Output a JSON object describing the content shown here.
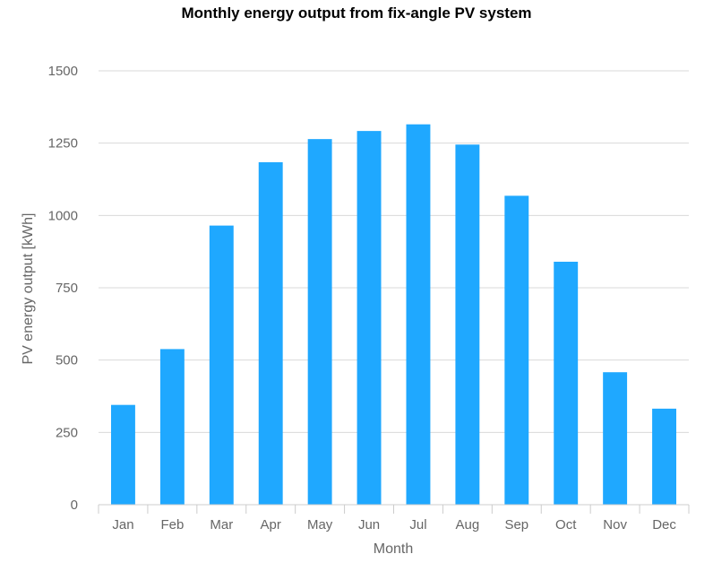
{
  "chart_data": {
    "type": "bar",
    "title": "Monthly energy output from fix-angle PV system",
    "xlabel": "Month",
    "ylabel": "PV energy output [kWh]",
    "categories": [
      "Jan",
      "Feb",
      "Mar",
      "Apr",
      "May",
      "Jun",
      "Jul",
      "Aug",
      "Sep",
      "Oct",
      "Nov",
      "Dec"
    ],
    "values": [
      345,
      538,
      965,
      1184,
      1264,
      1292,
      1315,
      1245,
      1068,
      840,
      458,
      332
    ],
    "ylim": [
      0,
      1500
    ],
    "yticks": [
      0,
      250,
      500,
      750,
      1000,
      1250,
      1500
    ],
    "grid": true,
    "bar_color": "#1fa8ff"
  }
}
